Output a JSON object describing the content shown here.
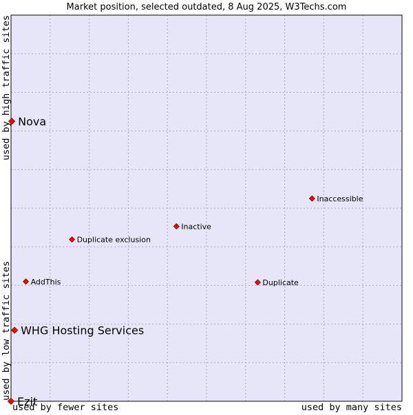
{
  "chart_data": {
    "type": "scatter",
    "title": "Market position, selected outdated, 8 Aug 2025, W3Techs.com",
    "x_axis": {
      "low_label": "used by fewer sites",
      "high_label": "used by many sites",
      "range": [
        0,
        100
      ]
    },
    "y_axis": {
      "low_label": "used by low traffic sites",
      "high_label": "used by high traffic sites",
      "range": [
        0,
        100
      ]
    },
    "grid": true,
    "point_color": "#ff0000",
    "plot_background": "#e6e6f8",
    "points": [
      {
        "label": "Nova",
        "x": 0.2,
        "y": 72.5,
        "emphasis": "large"
      },
      {
        "label": "Inaccessible",
        "x": 77.0,
        "y": 52.5,
        "emphasis": "small"
      },
      {
        "label": "Inactive",
        "x": 42.3,
        "y": 45.3,
        "emphasis": "small"
      },
      {
        "label": "Duplicate exclusion",
        "x": 15.6,
        "y": 41.9,
        "emphasis": "small"
      },
      {
        "label": "AddThis",
        "x": 3.8,
        "y": 31.0,
        "emphasis": "small"
      },
      {
        "label": "Duplicate",
        "x": 63.1,
        "y": 30.8,
        "emphasis": "small"
      },
      {
        "label": "WHG Hosting Services",
        "x": 0.9,
        "y": 18.4,
        "emphasis": "large"
      },
      {
        "label": "Ezit",
        "x": 0.0,
        "y": 0.0,
        "emphasis": "large"
      }
    ]
  }
}
